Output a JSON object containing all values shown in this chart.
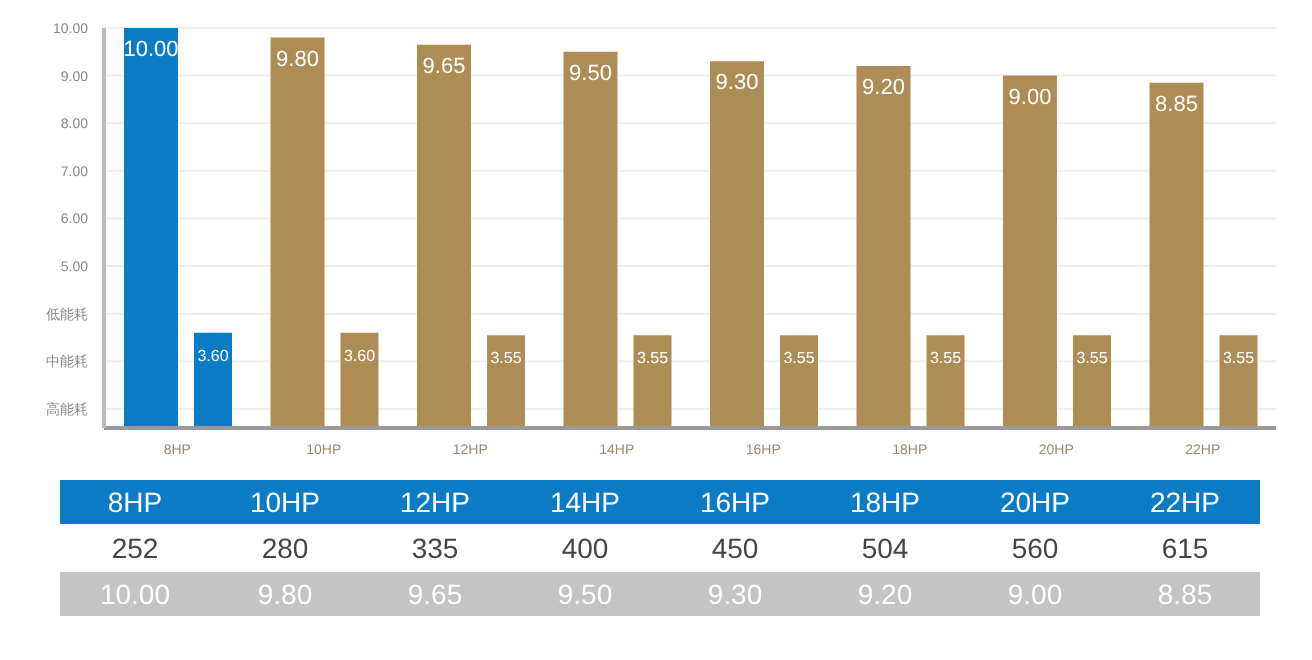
{
  "chart_data": {
    "type": "bar",
    "categories": [
      "8HP",
      "10HP",
      "12HP",
      "14HP",
      "16HP",
      "18HP",
      "20HP",
      "22HP"
    ],
    "series": [
      {
        "colors": [
          "#0a7bc4",
          "#ae8c55",
          "#ae8c55",
          "#ae8c55",
          "#ae8c55",
          "#ae8c55",
          "#ae8c55",
          "#ae8c55"
        ],
        "values": [
          10.0,
          9.8,
          9.65,
          9.5,
          9.3,
          9.2,
          9.0,
          8.85
        ],
        "value_labels": [
          "10.00",
          "9.80",
          "9.65",
          "9.50",
          "9.30",
          "9.20",
          "9.00",
          "8.85"
        ]
      },
      {
        "colors": [
          "#0a7bc4",
          "#ae8c55",
          "#ae8c55",
          "#ae8c55",
          "#ae8c55",
          "#ae8c55",
          "#ae8c55",
          "#ae8c55"
        ],
        "values": [
          3.6,
          3.6,
          3.55,
          3.55,
          3.55,
          3.55,
          3.55,
          3.55
        ],
        "value_labels": [
          "3.60",
          "3.60",
          "3.55",
          "3.55",
          "3.55",
          "3.55",
          "3.55",
          "3.55"
        ]
      }
    ],
    "ylim": [
      1.6,
      10
    ],
    "yticks": [
      {
        "value": 2,
        "label": "高能耗"
      },
      {
        "value": 3,
        "label": "中能耗"
      },
      {
        "value": 4,
        "label": "低能耗"
      },
      {
        "value": 5,
        "label": "5.00"
      },
      {
        "value": 6,
        "label": "6.00"
      },
      {
        "value": 7,
        "label": "7.00"
      },
      {
        "value": 8,
        "label": "8.00"
      },
      {
        "value": 9,
        "label": "9.00"
      },
      {
        "value": 10,
        "label": "10.00"
      }
    ],
    "grid": "y",
    "annotations": [
      "252",
      "280",
      "335",
      "400",
      "450",
      "504",
      "560",
      "615"
    ]
  }
}
